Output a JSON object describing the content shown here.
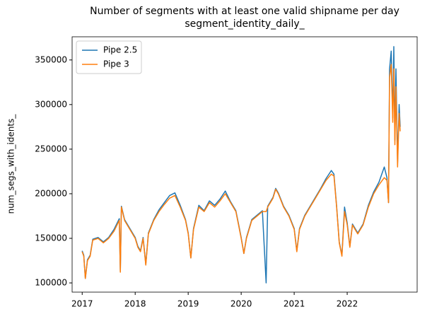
{
  "chart_data": {
    "type": "line",
    "title": "Number of segments with at least one valid shipname per day",
    "subtitle": "segment_identity_daily_",
    "ylabel": "num_segs_with_idents_",
    "x": [
      2017.0,
      2017.03,
      2017.06,
      2017.1,
      2017.15,
      2017.2,
      2017.3,
      2017.4,
      2017.5,
      2017.6,
      2017.7,
      2017.72,
      2017.74,
      2017.8,
      2017.9,
      2018.0,
      2018.05,
      2018.1,
      2018.15,
      2018.2,
      2018.25,
      2018.35,
      2018.45,
      2018.55,
      2018.65,
      2018.75,
      2018.85,
      2018.95,
      2019.0,
      2019.05,
      2019.1,
      2019.2,
      2019.3,
      2019.4,
      2019.5,
      2019.6,
      2019.7,
      2019.8,
      2019.9,
      2019.95,
      2020.0,
      2020.05,
      2020.1,
      2020.2,
      2020.3,
      2020.4,
      2020.47,
      2020.5,
      2020.6,
      2020.65,
      2020.7,
      2020.8,
      2020.9,
      2021.0,
      2021.05,
      2021.1,
      2021.2,
      2021.3,
      2021.4,
      2021.5,
      2021.6,
      2021.7,
      2021.75,
      2021.8,
      2021.85,
      2021.9,
      2021.95,
      2022.0,
      2022.05,
      2022.1,
      2022.2,
      2022.3,
      2022.4,
      2022.5,
      2022.6,
      2022.7,
      2022.75,
      2022.78,
      2022.8,
      2022.83,
      2022.86,
      2022.88,
      2022.9,
      2022.92,
      2022.95,
      2022.98,
      2023.0
    ],
    "series": [
      {
        "name": "Pipe 2.5",
        "color": "#1f77b4",
        "values": [
          136000,
          131000,
          105000,
          126000,
          131000,
          149000,
          151000,
          146000,
          151000,
          160000,
          172000,
          113000,
          186000,
          171000,
          161000,
          151000,
          141000,
          136000,
          151000,
          121000,
          156000,
          171000,
          182000,
          190000,
          198000,
          201000,
          187000,
          171000,
          156000,
          128000,
          161000,
          187000,
          181000,
          192000,
          187000,
          194000,
          203000,
          191000,
          181000,
          166000,
          151000,
          133000,
          151000,
          171000,
          176000,
          181000,
          100000,
          186000,
          196000,
          206000,
          201000,
          186000,
          176000,
          161000,
          136000,
          161000,
          176000,
          186000,
          196000,
          206000,
          217000,
          226000,
          222000,
          186000,
          146000,
          131000,
          185000,
          167000,
          141000,
          166000,
          156000,
          166000,
          187000,
          202000,
          213000,
          230000,
          218000,
          190000,
          340000,
          360000,
          285000,
          365000,
          260000,
          340000,
          235000,
          300000,
          275000
        ]
      },
      {
        "name": "Pipe 3",
        "color": "#ff7f0e",
        "values": [
          135000,
          130000,
          105000,
          125000,
          130000,
          148000,
          150000,
          145000,
          150000,
          158000,
          170000,
          112000,
          185000,
          170000,
          160000,
          150000,
          140000,
          135000,
          150000,
          120000,
          155000,
          170000,
          180000,
          188000,
          195000,
          198000,
          185000,
          170000,
          155000,
          128000,
          160000,
          185000,
          180000,
          190000,
          185000,
          192000,
          200000,
          190000,
          180000,
          165000,
          150000,
          133000,
          150000,
          170000,
          175000,
          180000,
          180000,
          185000,
          195000,
          205000,
          200000,
          185000,
          175000,
          160000,
          135000,
          160000,
          175000,
          185000,
          195000,
          205000,
          215000,
          222000,
          220000,
          185000,
          145000,
          130000,
          180000,
          165000,
          140000,
          165000,
          155000,
          165000,
          185000,
          200000,
          210000,
          218000,
          215000,
          190000,
          330000,
          345000,
          280000,
          340000,
          255000,
          320000,
          230000,
          290000,
          270000
        ]
      }
    ],
    "xlim": [
      2016.81,
      2023.32
    ],
    "xticks": [
      2017,
      2018,
      2019,
      2020,
      2021,
      2022
    ],
    "ylim": [
      89700,
      376000
    ],
    "yticks": [
      100000,
      150000,
      200000,
      250000,
      300000,
      350000
    ],
    "legend": "upper left"
  }
}
